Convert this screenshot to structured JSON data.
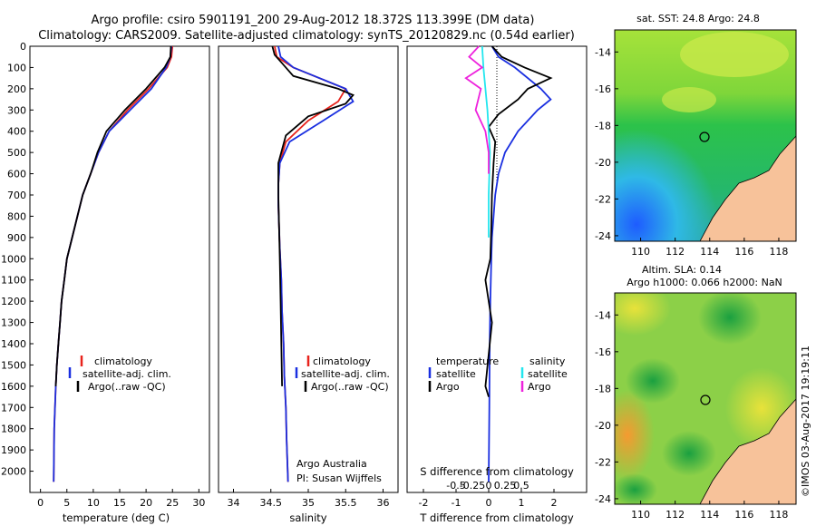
{
  "header": {
    "line1": "Argo profile: csiro 5901191_200 29-Aug-2012 18.372S 113.399E (DM data)",
    "line2": "Climatology: CARS2009. Satellite-adjusted climatology: synTS_20120829.nc (0.54d earlier)"
  },
  "colors": {
    "climatology": "#e8231c",
    "satellite": "#1a2fe0",
    "argo": "#000000",
    "s_satellite": "#22e6ee",
    "s_argo": "#ee22dd",
    "land": "#f7c29a"
  },
  "depth_ticks": [
    "0",
    "100",
    "200",
    "300",
    "400",
    "500",
    "600",
    "700",
    "800",
    "900",
    "1000",
    "1100",
    "1200",
    "1300",
    "1400",
    "1500",
    "1600",
    "1700",
    "1800",
    "1900",
    "2000"
  ],
  "panels": {
    "temperature": {
      "xlabel": "temperature (deg C)",
      "xticks": [
        "0",
        "5",
        "10",
        "15",
        "20",
        "25",
        "30"
      ],
      "legend": [
        "climatology",
        "satellite-adj. clim.",
        "Argo(..raw -QC)"
      ]
    },
    "salinity": {
      "xlabel": "salinity",
      "xticks": [
        "34",
        "34.5",
        "35",
        "35.5",
        "36"
      ],
      "legend": [
        "climatology",
        "satellite-adj. clim.",
        "Argo(..raw -QC)"
      ],
      "credit1": "Argo Australia",
      "credit2": "PI: Susan Wijffels"
    },
    "difference": {
      "top_title": "S difference from climatology",
      "top_ticks": [
        "-0.5",
        "-0.25",
        "0",
        "0.25",
        "0.5"
      ],
      "xlabel": "T difference from climatology",
      "xticks": [
        "-2",
        "-1",
        "0",
        "1",
        "2"
      ],
      "legend_t_title": "temperature",
      "legend_s_title": "salinity",
      "legend_t": [
        "satellite",
        "Argo"
      ],
      "legend_s": [
        "satellite",
        "Argo"
      ]
    }
  },
  "maps": {
    "sst": {
      "title": "sat. SST: 24.8  Argo: 24.8",
      "yticks": [
        "-14",
        "-16",
        "-18",
        "-20",
        "-22",
        "-24"
      ],
      "xticks": [
        "110",
        "112",
        "114",
        "116",
        "118"
      ]
    },
    "sla": {
      "title1": "Altim. SLA: 0.14",
      "title2": "Argo h1000: 0.066 h2000: NaN",
      "yticks": [
        "-14",
        "-16",
        "-18",
        "-20",
        "-22",
        "-24"
      ],
      "xticks": [
        "110",
        "112",
        "114",
        "116",
        "118"
      ]
    }
  },
  "side_credit": "©IMOS 03-Aug-2017 19:19:11",
  "chart_data": [
    {
      "type": "line",
      "title": "",
      "xlabel": "temperature (deg C)",
      "ylabel": "",
      "xlim": [
        -2,
        32
      ],
      "ylim": [
        2100,
        0
      ],
      "series": [
        {
          "name": "climatology",
          "x": [
            25.0,
            24.8,
            24.0,
            20.5,
            16.5,
            13.0,
            11.0,
            9.5,
            8.0,
            7.0,
            6.0,
            5.0,
            4.5,
            4.0,
            3.7,
            3.4,
            3.1,
            2.9,
            2.6,
            2.5
          ],
          "y": [
            0,
            50,
            100,
            200,
            300,
            400,
            500,
            600,
            700,
            800,
            900,
            1000,
            1100,
            1200,
            1300,
            1400,
            1500,
            1600,
            1800,
            2050
          ]
        },
        {
          "name": "satellite-adj. clim.",
          "x": [
            24.8,
            24.6,
            23.8,
            21.0,
            17.0,
            13.0,
            11.0,
            9.5,
            8.0,
            7.0,
            6.0,
            5.0,
            4.5,
            4.0,
            3.7,
            3.4,
            3.1,
            2.9,
            2.6,
            2.5
          ],
          "y": [
            0,
            50,
            100,
            200,
            300,
            400,
            500,
            600,
            700,
            800,
            900,
            1000,
            1100,
            1200,
            1300,
            1400,
            1500,
            1600,
            1800,
            2050
          ]
        },
        {
          "name": "Argo(..raw -QC)",
          "x": [
            24.7,
            24.6,
            23.5,
            20.0,
            16.0,
            12.5,
            10.8,
            9.5,
            8.0,
            7.0,
            6.0,
            5.0,
            4.5,
            4.0,
            3.7,
            3.4,
            3.1,
            2.9
          ],
          "y": [
            0,
            50,
            100,
            200,
            300,
            400,
            500,
            600,
            700,
            800,
            900,
            1000,
            1100,
            1200,
            1300,
            1400,
            1500,
            1600
          ]
        }
      ]
    },
    {
      "type": "line",
      "title": "",
      "xlabel": "salinity",
      "ylabel": "",
      "xlim": [
        33.8,
        36.2
      ],
      "ylim": [
        2100,
        0
      ],
      "series": [
        {
          "name": "climatology",
          "x": [
            34.55,
            34.58,
            34.8,
            35.5,
            35.4,
            35.0,
            34.7,
            34.62,
            34.6,
            34.6,
            34.61,
            34.62,
            34.64,
            34.65,
            34.67,
            34.68,
            34.7,
            34.71,
            34.72,
            34.73
          ],
          "y": [
            0,
            50,
            100,
            200,
            260,
            350,
            450,
            550,
            650,
            750,
            850,
            950,
            1100,
            1250,
            1400,
            1550,
            1700,
            1850,
            1950,
            2050
          ]
        },
        {
          "name": "satellite-adj. clim.",
          "x": [
            34.6,
            34.63,
            34.8,
            35.5,
            35.6,
            35.2,
            34.75,
            34.62,
            34.6,
            34.6,
            34.61,
            34.62,
            34.64,
            34.65,
            34.67,
            34.68,
            34.7,
            34.71,
            34.72,
            34.73
          ],
          "y": [
            0,
            50,
            100,
            200,
            260,
            350,
            450,
            550,
            650,
            750,
            850,
            950,
            1100,
            1250,
            1400,
            1550,
            1700,
            1850,
            1950,
            2050
          ]
        },
        {
          "name": "Argo(..raw -QC)",
          "x": [
            34.52,
            34.55,
            34.65,
            34.8,
            35.4,
            35.6,
            35.5,
            35.0,
            34.7,
            34.6,
            34.6,
            34.61,
            34.62,
            34.63,
            34.65
          ],
          "y": [
            0,
            40,
            80,
            140,
            200,
            230,
            270,
            330,
            420,
            550,
            700,
            850,
            1000,
            1200,
            1600
          ]
        }
      ]
    },
    {
      "type": "line",
      "title": "S difference from climatology",
      "xlabel": "T difference from climatology",
      "ylabel": "",
      "xlim": [
        -2.5,
        3
      ],
      "ylim": [
        2100,
        0
      ],
      "series": [
        {
          "name": "satellite",
          "x": [
            0.1,
            0.3,
            0.8,
            1.6,
            1.9,
            1.5,
            0.9,
            0.5,
            0.3,
            0.2,
            0.15,
            0.1,
            0.08,
            0.05,
            0.03,
            0.02,
            0.0
          ],
          "y": [
            0,
            50,
            100,
            200,
            250,
            300,
            400,
            500,
            600,
            700,
            800,
            900,
            1000,
            1200,
            1400,
            1700,
            2050
          ]
        },
        {
          "name": "Argo",
          "x": [
            0.1,
            0.4,
            1.1,
            1.9,
            1.2,
            0.9,
            0.3,
            0.0,
            0.2,
            0.15,
            0.1,
            0.08,
            0.05,
            -0.1,
            0.1,
            -0.1,
            0.0
          ],
          "y": [
            0,
            50,
            100,
            150,
            200,
            250,
            320,
            380,
            450,
            550,
            700,
            850,
            1000,
            1100,
            1300,
            1600,
            1650
          ]
        },
        {
          "name": "S satellite",
          "x": [
            -0.1,
            -0.08,
            -0.05,
            -0.02,
            0.0,
            0.02,
            0.01,
            0.0,
            0.0,
            0.0
          ],
          "y": [
            0,
            100,
            200,
            300,
            400,
            500,
            600,
            700,
            800,
            900
          ]
        },
        {
          "name": "S Argo",
          "x": [
            -0.15,
            -0.3,
            -0.1,
            -0.35,
            -0.12,
            -0.2,
            -0.05,
            0.0,
            0.0
          ],
          "y": [
            0,
            50,
            100,
            150,
            200,
            300,
            400,
            500,
            600
          ]
        }
      ]
    }
  ]
}
